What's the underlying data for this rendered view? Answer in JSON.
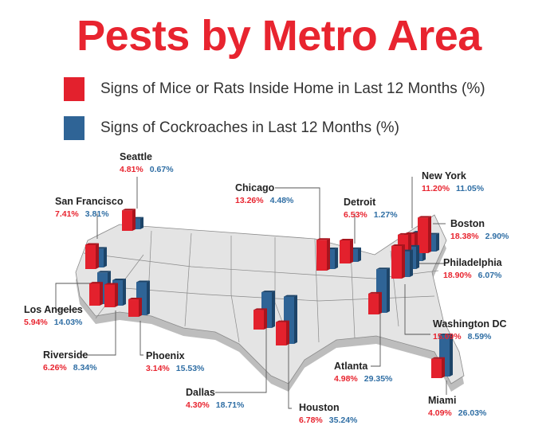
{
  "title": "Pests by Metro Area",
  "legend": [
    {
      "label": "Signs of Mice or Rats Inside Home in Last 12 Months (%)",
      "color": "#e3212d"
    },
    {
      "label": "Signs of Cockroaches in Last 12 Months (%)",
      "color": "#2f6496"
    }
  ],
  "chart_data": {
    "type": "bar",
    "title": "Pests by Metro Area",
    "categories": [
      "Seattle",
      "San Francisco",
      "Los Angeles",
      "Riverside",
      "Phoenix",
      "Dallas",
      "Houston",
      "Chicago",
      "Detroit",
      "Atlanta",
      "Miami",
      "New York",
      "Boston",
      "Philadelphia",
      "Washington DC"
    ],
    "series": [
      {
        "name": "Signs of Mice or Rats Inside Home in Last 12 Months (%)",
        "values": [
          4.81,
          7.41,
          5.94,
          6.26,
          3.14,
          4.3,
          6.78,
          13.26,
          6.53,
          4.98,
          4.09,
          11.2,
          18.38,
          18.9,
          15.09
        ]
      },
      {
        "name": "Signs of Cockroaches in Last 12 Months (%)",
        "values": [
          0.67,
          3.81,
          14.03,
          8.34,
          15.53,
          18.71,
          35.24,
          4.48,
          1.27,
          29.35,
          26.03,
          11.05,
          2.9,
          6.07,
          8.59
        ]
      }
    ],
    "value_labels": {
      "rats": [
        "4.81%",
        "7.41%",
        "5.94%",
        "6.26%",
        "3.14%",
        "4.30%",
        "6.78%",
        "13.26%",
        "6.53%",
        "4.98%",
        "4.09%",
        "11.20%",
        "18.38%",
        "18.90%",
        "15.09%"
      ],
      "roaches": [
        "0.67%",
        "3.81%",
        "14.03%",
        "8.34%",
        "15.53%",
        "18.71%",
        "35.24%",
        "4.48%",
        "1.27%",
        "29.35%",
        "26.03%",
        "11.05%",
        "2.90%",
        "6.07%",
        "8.59%"
      ]
    }
  }
}
